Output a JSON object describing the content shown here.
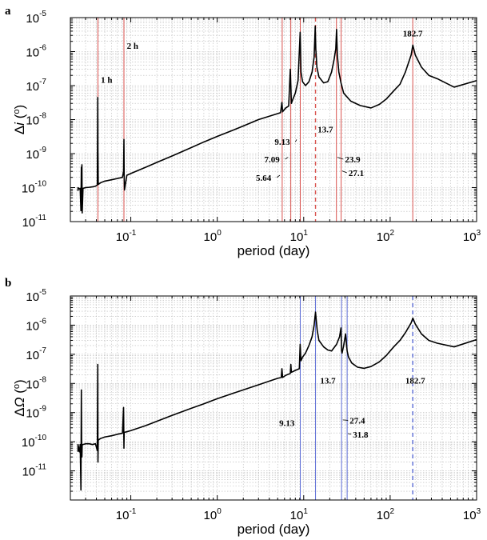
{
  "chart_data": [
    {
      "panel": "a",
      "type": "line",
      "xlabel": "period (day)",
      "ylabel_prefix": "Δ",
      "ylabel_symbol": "i",
      "ylabel_unit_open": " (",
      "ylabel_unit_sup": "o",
      "ylabel_unit_close": ")",
      "x_scale": "log",
      "y_scale": "log",
      "xlim": [
        0.02,
        1000
      ],
      "ylim": [
        1e-11,
        1e-05
      ],
      "grid": true,
      "x_ticks": [
        {
          "value": 0.1,
          "base": "10",
          "exp": "-1"
        },
        {
          "value": 1,
          "base": "10",
          "exp": "0"
        },
        {
          "value": 10,
          "base": "10",
          "exp": "1"
        },
        {
          "value": 100,
          "base": "10",
          "exp": "2"
        },
        {
          "value": 1000,
          "base": "10",
          "exp": "3"
        }
      ],
      "y_ticks": [
        {
          "value": 1e-11,
          "base": "10",
          "exp": "-11"
        },
        {
          "value": 1e-10,
          "base": "10",
          "exp": "-10"
        },
        {
          "value": 1e-09,
          "base": "10",
          "exp": "-9"
        },
        {
          "value": 1e-08,
          "base": "10",
          "exp": "-8"
        },
        {
          "value": 1e-07,
          "base": "10",
          "exp": "-7"
        },
        {
          "value": 1e-06,
          "base": "10",
          "exp": "-6"
        },
        {
          "value": 1e-05,
          "base": "10",
          "exp": "-5"
        }
      ],
      "line_color": "#000000",
      "marker_color": "#d9534f",
      "markers": [
        {
          "x": 0.0417,
          "style": "solid"
        },
        {
          "x": 0.0833,
          "style": "solid"
        },
        {
          "x": 5.64,
          "style": "solid"
        },
        {
          "x": 7.09,
          "style": "solid"
        },
        {
          "x": 9.13,
          "style": "solid"
        },
        {
          "x": 13.7,
          "style": "dashed"
        },
        {
          "x": 23.9,
          "style": "solid"
        },
        {
          "x": 27.1,
          "style": "solid"
        },
        {
          "x": 182.7,
          "style": "solid"
        }
      ],
      "annotations": [
        {
          "text": "1 h",
          "x": 0.045,
          "y": 1.2e-07
        },
        {
          "text": "2 h",
          "x": 0.09,
          "y": 1.2e-06
        },
        {
          "text": "9.13",
          "x": 4.6,
          "y": 1.8e-09,
          "line_to": [
            8.3,
            2.6e-09
          ]
        },
        {
          "text": "7.09",
          "x": 3.5,
          "y": 5.5e-10,
          "line_to": [
            6.6,
            7.8e-10
          ]
        },
        {
          "text": "5.64",
          "x": 2.8,
          "y": 1.6e-10,
          "line_to": [
            5.3,
            2.3e-10
          ]
        },
        {
          "text": "13.7",
          "x": 14.5,
          "y": 4.2e-09
        },
        {
          "text": "23.9",
          "x": 30,
          "y": 5.5e-10,
          "line_to": [
            24.5,
            7.8e-10
          ]
        },
        {
          "text": "27.1",
          "x": 33,
          "y": 2.2e-10,
          "line_to": [
            27.8,
            3.1e-10
          ]
        },
        {
          "text": "182.7",
          "x": 140,
          "y": 2.8e-06
        }
      ],
      "series": [
        {
          "x": [
            0.0245,
            0.0245,
            0.0255,
            0.026,
            0.0265,
            0.0268,
            0.027,
            0.0272,
            0.0274,
            0.028,
            0.03,
            0.033,
            0.036,
            0.039,
            0.041,
            0.0415,
            0.0417,
            0.042,
            0.0425,
            0.043,
            0.045,
            0.05,
            0.06,
            0.07,
            0.08,
            0.0825,
            0.0833,
            0.0838,
            0.0845,
            0.09,
            0.1,
            0.15,
            0.2,
            0.3,
            0.5,
            0.7,
            1,
            1.5,
            2,
            3,
            5,
            5.4,
            5.6,
            5.7,
            5.8,
            6.2,
            6.7,
            7.0,
            7.2,
            7.5,
            8.0,
            8.6,
            8.9,
            9.1,
            9.3,
            9.7,
            10.5,
            11.5,
            12.5,
            13.2,
            13.6,
            13.8,
            14.2,
            15,
            17,
            19,
            21,
            22.5,
            23.5,
            24,
            24.5,
            25.5,
            27,
            29,
            35,
            45,
            60,
            75,
            90,
            110,
            130,
            150,
            175,
            183,
            195,
            230,
            280,
            350,
            550,
            1000
          ],
          "y": [
            8e-11,
            1e-10,
            9e-11,
            9.5e-11,
            2.1e-11,
            4e-10,
            9e-11,
            4.7e-10,
            1.8e-11,
            9.5e-11,
            1e-10,
            1.02e-10,
            1.05e-10,
            1.1e-10,
            1.2e-10,
            4.5e-08,
            1e-09,
            1.4e-10,
            1.25e-10,
            1.3e-10,
            1.4e-10,
            1.55e-10,
            1.7e-10,
            1.85e-10,
            2e-10,
            3e-10,
            2.6e-09,
            2.2e-10,
            8.5e-11,
            2.3e-10,
            2.6e-10,
            4e-10,
            5.5e-10,
            8.5e-10,
            1.5e-09,
            2.2e-09,
            3.2e-09,
            4.8e-09,
            6.5e-09,
            1e-08,
            1.5e-08,
            1.6e-08,
            3.2e-08,
            1.7e-08,
            1.8e-08,
            2.2e-08,
            2.5e-08,
            3e-07,
            3e-08,
            4e-08,
            6e-08,
            1.4e-07,
            1e-06,
            3.7e-06,
            2.5e-07,
            1.3e-07,
            1e-07,
            1.3e-07,
            2.5e-07,
            7e-07,
            5.6e-06,
            1.2e-06,
            3.5e-07,
            1.8e-07,
            1.2e-07,
            1.3e-07,
            2.5e-07,
            6e-07,
            1.2e-06,
            4.5e-06,
            8e-07,
            2.5e-07,
            1.2e-07,
            6e-08,
            3.5e-08,
            2.6e-08,
            2.2e-08,
            2.8e-08,
            4e-08,
            7e-08,
            1.1e-07,
            2.5e-07,
            8e-07,
            1.55e-06,
            8e-07,
            3.5e-07,
            2e-07,
            1.6e-07,
            9e-08,
            1.4e-07
          ]
        }
      ]
    },
    {
      "panel": "b",
      "type": "line",
      "xlabel": "period (day)",
      "ylabel_prefix": "Δ",
      "ylabel_symbol": "Ω",
      "ylabel_unit_open": " (",
      "ylabel_unit_sup": "o",
      "ylabel_unit_close": ")",
      "x_scale": "log",
      "y_scale": "log",
      "xlim": [
        0.02,
        1000
      ],
      "ylim": [
        1e-12,
        1e-05
      ],
      "grid": true,
      "x_ticks": [
        {
          "value": 0.1,
          "base": "10",
          "exp": "-1"
        },
        {
          "value": 1,
          "base": "10",
          "exp": "0"
        },
        {
          "value": 10,
          "base": "10",
          "exp": "1"
        },
        {
          "value": 100,
          "base": "10",
          "exp": "2"
        },
        {
          "value": 1000,
          "base": "10",
          "exp": "3"
        }
      ],
      "y_ticks": [
        {
          "value": 1e-11,
          "base": "10",
          "exp": "-11"
        },
        {
          "value": 1e-10,
          "base": "10",
          "exp": "-10"
        },
        {
          "value": 1e-09,
          "base": "10",
          "exp": "-9"
        },
        {
          "value": 1e-08,
          "base": "10",
          "exp": "-8"
        },
        {
          "value": 1e-07,
          "base": "10",
          "exp": "-7"
        },
        {
          "value": 1e-06,
          "base": "10",
          "exp": "-6"
        },
        {
          "value": 1e-05,
          "base": "10",
          "exp": "-5"
        }
      ],
      "line_color": "#000000",
      "marker_color": "#5b6bd6",
      "markers": [
        {
          "x": 9.13,
          "style": "solid"
        },
        {
          "x": 13.7,
          "style": "solid"
        },
        {
          "x": 27.4,
          "style": "solid"
        },
        {
          "x": 31.8,
          "style": "solid"
        },
        {
          "x": 182.7,
          "style": "dashed"
        }
      ],
      "annotations": [
        {
          "text": "13.7",
          "x": 15.5,
          "y": 1e-08
        },
        {
          "text": "9.13",
          "x": 5.2,
          "y": 3.5e-10
        },
        {
          "text": "27.4",
          "x": 34,
          "y": 4.2e-10,
          "line_to": [
            28.3,
            5.6e-10
          ]
        },
        {
          "text": "31.8",
          "x": 37,
          "y": 1.4e-10,
          "line_to": [
            32.5,
            1.9e-10
          ]
        },
        {
          "text": "182.7",
          "x": 150,
          "y": 1e-08
        }
      ],
      "series": [
        {
          "x": [
            0.0245,
            0.0245,
            0.0255,
            0.026,
            0.0265,
            0.0268,
            0.027,
            0.0272,
            0.0274,
            0.028,
            0.03,
            0.033,
            0.036,
            0.039,
            0.041,
            0.0415,
            0.0417,
            0.042,
            0.0425,
            0.043,
            0.045,
            0.05,
            0.06,
            0.07,
            0.08,
            0.0825,
            0.0833,
            0.0838,
            0.0845,
            0.09,
            0.1,
            0.15,
            0.2,
            0.3,
            0.5,
            0.7,
            1,
            1.5,
            2,
            3,
            5,
            5.5,
            5.6,
            5.7,
            6.2,
            7.0,
            7.1,
            7.2,
            8,
            8.9,
            9.1,
            9.3,
            9.7,
            10.5,
            11.5,
            12.5,
            13.2,
            13.7,
            14.3,
            15,
            17,
            19,
            21,
            24,
            26,
            27,
            27.4,
            27.8,
            29,
            30.5,
            31.8,
            33,
            36,
            42,
            50,
            60,
            75,
            90,
            110,
            130,
            150,
            175,
            183,
            195,
            230,
            280,
            350,
            550,
            1000
          ],
          "y": [
            4.5e-11,
            8e-11,
            4.5e-11,
            8e-11,
            2.2e-12,
            6e-09,
            8e-11,
            3e-11,
            8e-11,
            8e-11,
            8.5e-11,
            8.5e-11,
            8e-11,
            8.5e-11,
            5e-11,
            4.5e-08,
            2e-11,
            1.2e-10,
            1.15e-10,
            1.2e-10,
            1.3e-10,
            1.45e-10,
            1.6e-10,
            1.8e-10,
            1.95e-10,
            1.5e-09,
            6e-11,
            2e-10,
            2.1e-10,
            2.2e-10,
            2.4e-10,
            3.6e-10,
            5e-10,
            8e-10,
            1.4e-09,
            2e-09,
            3e-09,
            4.5e-09,
            6e-09,
            9e-09,
            1.5e-08,
            1.6e-08,
            3.2e-08,
            1.6e-08,
            1.9e-08,
            2.2e-08,
            4.5e-08,
            2.4e-08,
            2.8e-08,
            3.2e-08,
            2.2e-07,
            6e-08,
            8e-08,
            1.1e-07,
            2e-07,
            4e-07,
            1e-06,
            2.8e-06,
            7e-07,
            3e-07,
            1.8e-07,
            1.4e-07,
            1.3e-07,
            2.2e-07,
            4e-07,
            8e-07,
            1.3e-07,
            1.1e-07,
            2e-07,
            5e-07,
            1.3e-07,
            8e-08,
            5e-08,
            3.6e-08,
            3.3e-08,
            3.8e-08,
            5.5e-08,
            9e-08,
            1.8e-07,
            3e-07,
            5.5e-07,
            1.2e-06,
            1.75e-06,
            1.1e-06,
            5e-07,
            3e-07,
            2.4e-07,
            1.8e-07,
            3.2e-07
          ]
        }
      ]
    }
  ]
}
